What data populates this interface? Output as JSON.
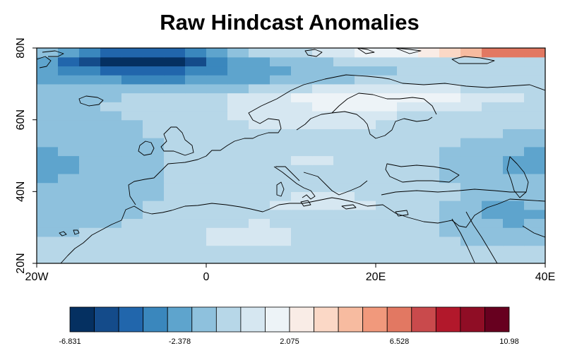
{
  "title": "Raw Hindcast Anomalies",
  "map": {
    "lon_range": [
      -20,
      40
    ],
    "lat_range": [
      20,
      80
    ],
    "lon_ticks": [
      {
        "value": -20,
        "label": "20W"
      },
      {
        "value": 0,
        "label": "0"
      },
      {
        "value": 20,
        "label": "20E"
      },
      {
        "value": 40,
        "label": "40E"
      }
    ],
    "lat_ticks": [
      {
        "value": 20,
        "label": "20N"
      },
      {
        "value": 40,
        "label": "40N"
      },
      {
        "value": 60,
        "label": "60N"
      },
      {
        "value": 80,
        "label": "80N"
      }
    ],
    "colorbar": {
      "min": -6.831,
      "max": 10.98,
      "labels": [
        "-6.831",
        "-2.378",
        "2.075",
        "6.528",
        "10.98"
      ],
      "colors": [
        "#053061",
        "#144b8a",
        "#2166ac",
        "#3a87bd",
        "#5ea4cd",
        "#8ec1dd",
        "#b7d7e8",
        "#d6e7f1",
        "#edf3f7",
        "#f9ece6",
        "#fbd8c6",
        "#f7bba0",
        "#f1997c",
        "#e27862",
        "#c94a4c",
        "#b2182b",
        "#8f0d25",
        "#67001f"
      ]
    }
  }
}
